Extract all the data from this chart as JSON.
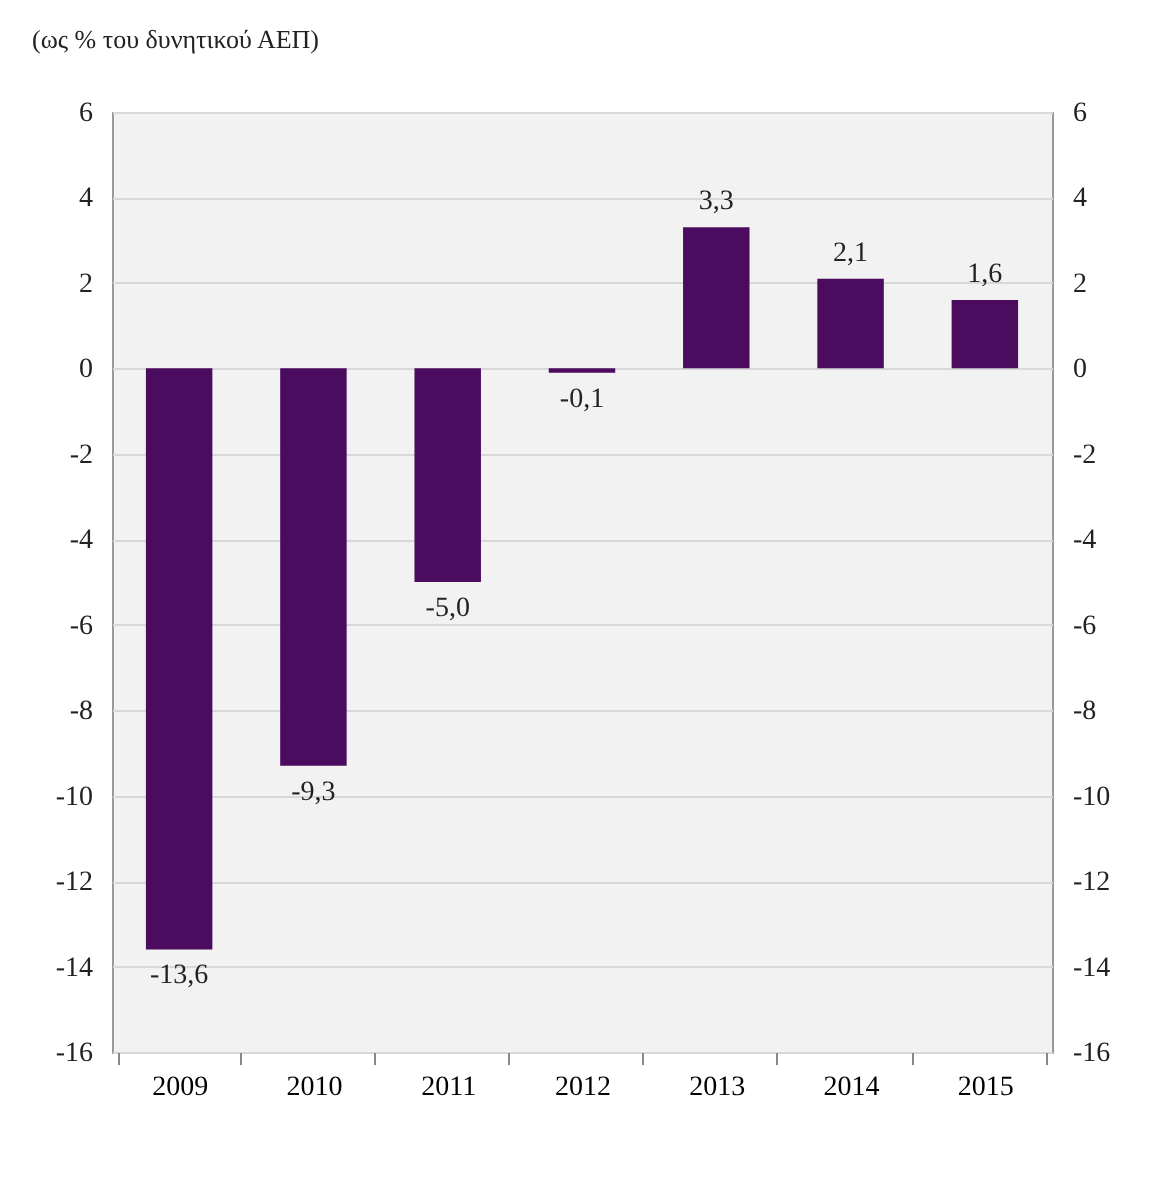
{
  "chart_data": {
    "type": "bar",
    "title": "(ως % του δυνητικού ΑΕΠ)",
    "categories": [
      "2009",
      "2010",
      "2011",
      "2012",
      "2013",
      "2014",
      "2015"
    ],
    "values": [
      -13.6,
      -9.3,
      -5.0,
      -0.1,
      3.3,
      2.1,
      1.6
    ],
    "value_labels": [
      "-13,6",
      "-9,3",
      "-5,0",
      "-0,1",
      "3,3",
      "2,1",
      "1,6"
    ],
    "color": "#4b0b5f",
    "ylim": [
      -16,
      6
    ],
    "yticks": [
      -16,
      -14,
      -12,
      -10,
      -8,
      -6,
      -4,
      -2,
      0,
      2,
      4,
      6
    ],
    "y2lim": [
      -16,
      6
    ],
    "y2ticks": [
      -16,
      -14,
      -12,
      -10,
      -8,
      -6,
      -4,
      -2,
      0,
      2,
      4,
      6
    ],
    "grid": "y"
  }
}
